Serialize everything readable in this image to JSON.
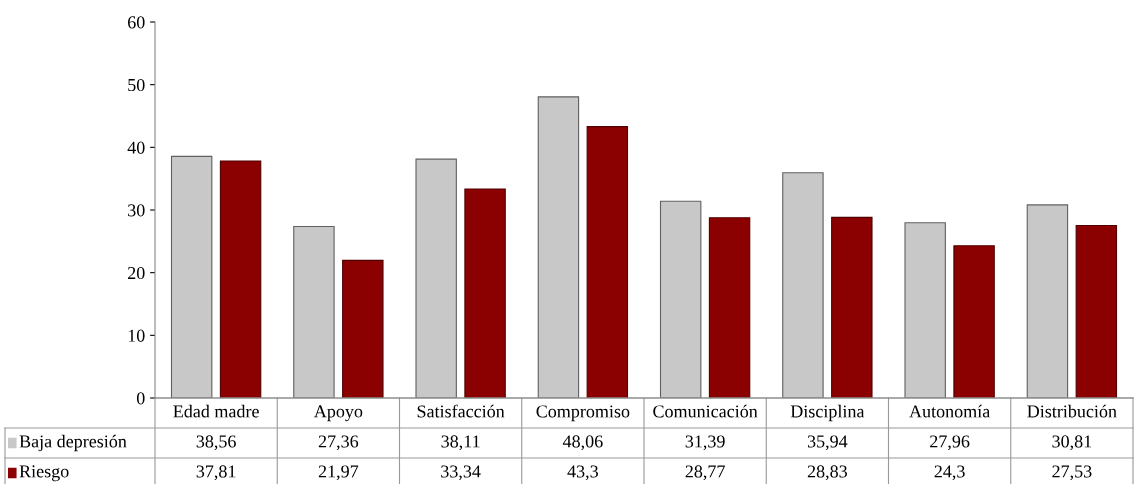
{
  "chart_data": {
    "type": "bar",
    "categories": [
      "Edad madre",
      "Apoyo",
      "Satisfacción",
      "Compromiso",
      "Comunicación",
      "Disciplina",
      "Autonomía",
      "Distribución"
    ],
    "series": [
      {
        "name": "Baja depresión",
        "color": "#c8c8c8",
        "values": [
          38.56,
          27.36,
          38.11,
          48.06,
          31.39,
          35.94,
          27.96,
          30.81
        ],
        "value_labels": [
          "38,56",
          "27,36",
          "38,11",
          "48,06",
          "31,39",
          "35,94",
          "27,96",
          "30,81"
        ]
      },
      {
        "name": "Riesgo",
        "color": "#8b0000",
        "values": [
          37.81,
          21.97,
          33.34,
          43.3,
          28.77,
          28.83,
          24.3,
          27.53
        ],
        "value_labels": [
          "37,81",
          "21,97",
          "33,34",
          "43,3",
          "28,77",
          "28,83",
          "24,3",
          "27,53"
        ]
      }
    ],
    "ylim": [
      0,
      60
    ],
    "yticks": [
      0,
      10,
      20,
      30,
      40,
      50,
      60
    ],
    "grid": false,
    "legend": "bottom left",
    "data_labels": true
  }
}
